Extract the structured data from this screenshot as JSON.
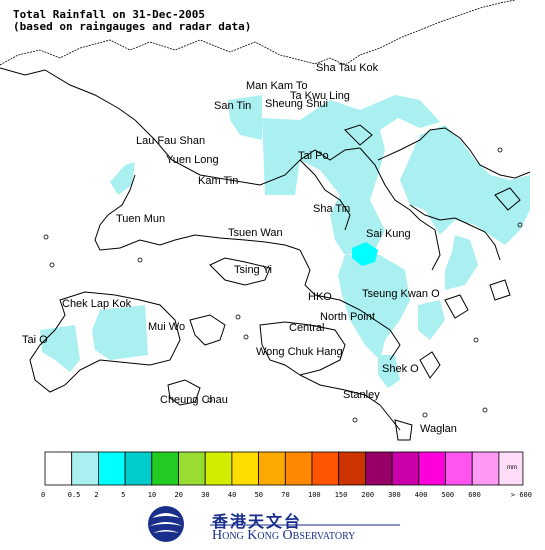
{
  "title": {
    "line1": "Total Rainfall on 31-Dec-2005",
    "line2": "(based on raingauges and radar data)"
  },
  "place_names": [
    "Sha Tau Kok",
    "Man Kam To",
    "Ta Kwu Ling",
    "San Tin",
    "Sheung Shui",
    "Lau Fau Shan",
    "Yuen Long",
    "Tai Po",
    "Kam Tin",
    "Sha Tin",
    "Tuen Mun",
    "Tsuen Wan",
    "Sai Kung",
    "Tsing Yi",
    "Chek Lap Kok",
    "HKO",
    "Tseung Kwan O",
    "North Point",
    "Mui Wo",
    "Central",
    "Tai O",
    "Wong Chuk Hang",
    "Shek O",
    "Cheung Chau",
    "Stanley",
    "Waglan"
  ],
  "legend": {
    "unit": "mm",
    "bins": [
      "0",
      "0.5",
      "2",
      "5",
      "10",
      "20",
      "30",
      "40",
      "50",
      "70",
      "100",
      "150",
      "200",
      "300",
      "400",
      "500",
      "600",
      "> 600"
    ],
    "colors": [
      "#ffffff",
      "#aaf0f0",
      "#00ffff",
      "#00cccc",
      "#22cc22",
      "#99dd33",
      "#d4ec00",
      "#ffdd00",
      "#ffaa00",
      "#ff8800",
      "#ff5500",
      "#cc3300",
      "#990066",
      "#cc00aa",
      "#ff00dd",
      "#ff55ee",
      "#ff99f4",
      "#ffdcf8"
    ]
  },
  "rain_color": "#aaf0f0",
  "logo": {
    "chinese": "香港天文台",
    "english": "Hong Kong Observatory"
  }
}
